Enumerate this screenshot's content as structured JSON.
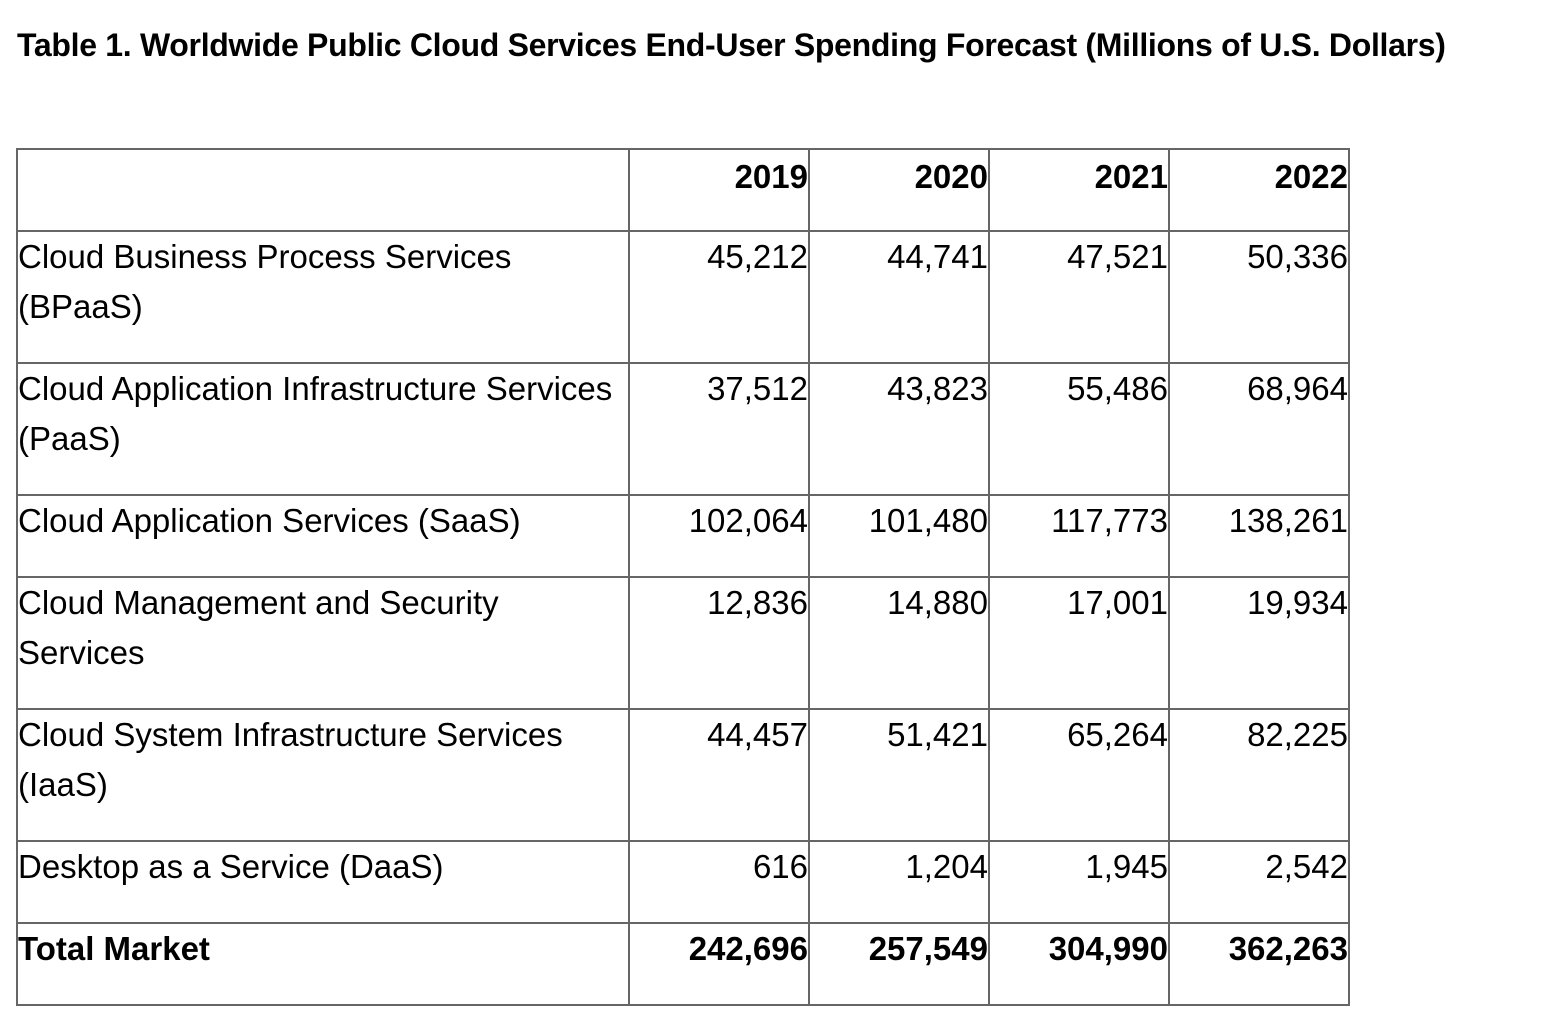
{
  "title": "Table 1. Worldwide Public Cloud Services End-User Spending Forecast (Millions of U.S. Dollars)",
  "table": {
    "columns": [
      "",
      "2019",
      "2020",
      "2021",
      "2022"
    ],
    "rows": [
      {
        "label": "Cloud Business Process Services (BPaaS)",
        "values": [
          "45,212",
          "44,741",
          "47,521",
          "50,336"
        ]
      },
      {
        "label": "Cloud Application Infrastructure Services (PaaS)",
        "values": [
          "37,512",
          "43,823",
          "55,486",
          "68,964"
        ]
      },
      {
        "label": "Cloud Application Services (SaaS)",
        "values": [
          "102,064",
          "101,480",
          "117,773",
          "138,261"
        ]
      },
      {
        "label": "Cloud Management and Security Services",
        "values": [
          "12,836",
          "14,880",
          "17,001",
          "19,934"
        ]
      },
      {
        "label": "Cloud System Infrastructure Services (IaaS)",
        "values": [
          "44,457",
          "51,421",
          "65,264",
          "82,225"
        ]
      },
      {
        "label": "Desktop as a Service (DaaS)",
        "values": [
          "616",
          "1,204",
          "1,945",
          "2,542"
        ]
      }
    ],
    "total": {
      "label": "Total Market",
      "values": [
        "242,696",
        "257,549",
        "304,990",
        "362,263"
      ]
    }
  }
}
